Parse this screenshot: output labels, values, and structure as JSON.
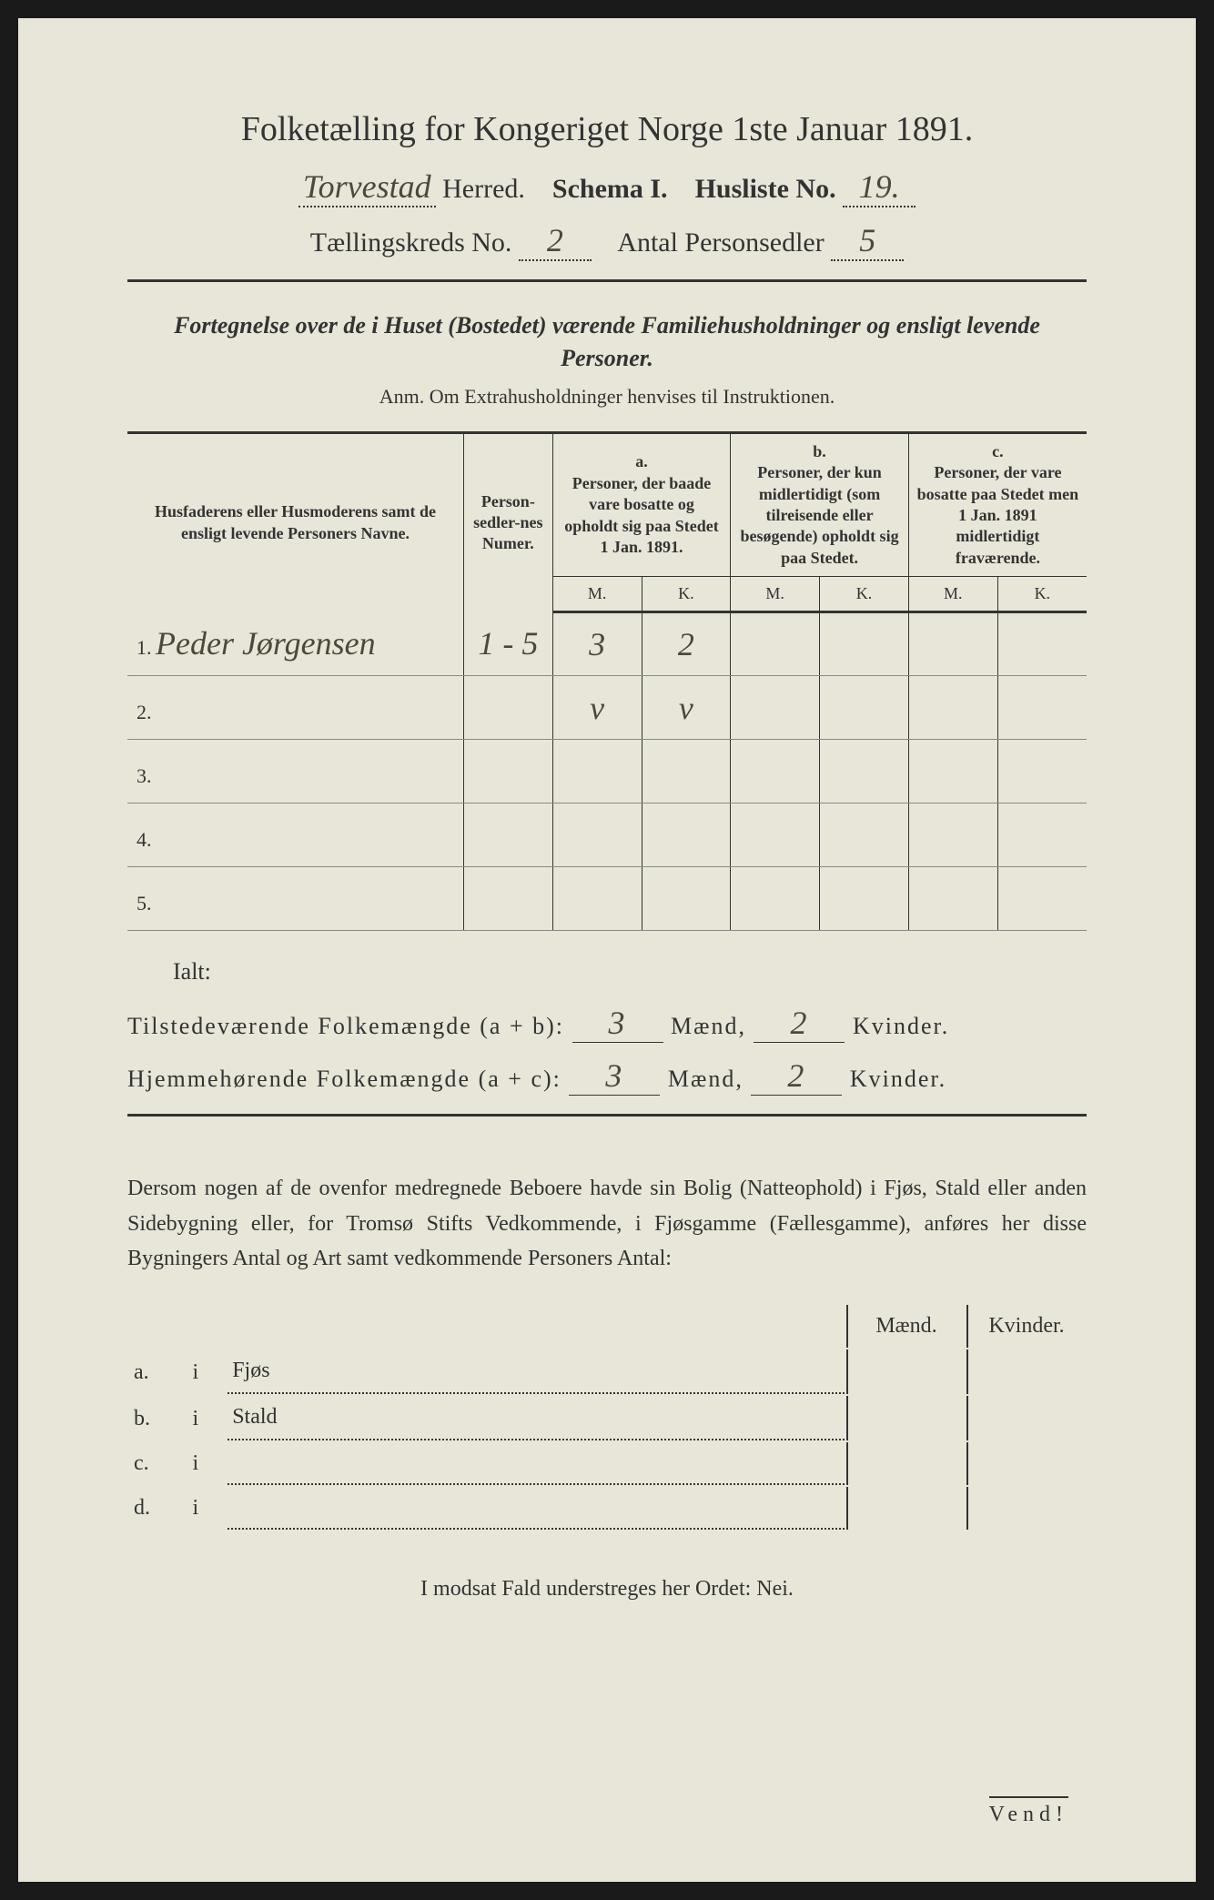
{
  "header": {
    "title": "Folketælling for Kongeriget Norge 1ste Januar 1891.",
    "herred_value": "Torvestad",
    "herred_label": "Herred.",
    "schema_label": "Schema I.",
    "husliste_label": "Husliste No.",
    "husliste_value": "19.",
    "taellingskreds_label": "Tællingskreds No.",
    "taellingskreds_value": "2",
    "antal_label": "Antal Personsedler",
    "antal_value": "5"
  },
  "section_heading": "Fortegnelse over de i Huset (Bostedet) værende Familiehusholdninger og ensligt levende Personer.",
  "anm": "Anm.  Om Extrahusholdninger henvises til Instruktionen.",
  "table": {
    "col1_header": "Husfaderens eller Husmoderens samt de ensligt levende Personers Navne.",
    "col2_header": "Person-sedler-nes Numer.",
    "col_a_label": "a.",
    "col_a_text": "Personer, der baade vare bosatte og opholdt sig paa Stedet 1 Jan. 1891.",
    "col_b_label": "b.",
    "col_b_text": "Personer, der kun midlertidigt (som tilreisende eller besøgende) opholdt sig paa Stedet.",
    "col_c_label": "c.",
    "col_c_text": "Personer, der vare bosatte paa Stedet men 1 Jan. 1891 midlertidigt fraværende.",
    "m_label": "M.",
    "k_label": "K.",
    "rows": [
      {
        "num": "1.",
        "name": "Peder Jørgensen",
        "sedler": "1 - 5",
        "am": "3",
        "ak": "2",
        "bm": "",
        "bk": "",
        "cm": "",
        "ck": ""
      },
      {
        "num": "2.",
        "name": "",
        "sedler": "",
        "am": "v",
        "ak": "v",
        "bm": "",
        "bk": "",
        "cm": "",
        "ck": ""
      },
      {
        "num": "3.",
        "name": "",
        "sedler": "",
        "am": "",
        "ak": "",
        "bm": "",
        "bk": "",
        "cm": "",
        "ck": ""
      },
      {
        "num": "4.",
        "name": "",
        "sedler": "",
        "am": "",
        "ak": "",
        "bm": "",
        "bk": "",
        "cm": "",
        "ck": ""
      },
      {
        "num": "5.",
        "name": "",
        "sedler": "",
        "am": "",
        "ak": "",
        "bm": "",
        "bk": "",
        "cm": "",
        "ck": ""
      }
    ]
  },
  "summary": {
    "ialt": "Ialt:",
    "line1_label": "Tilstedeværende Folkemængde (a + b):",
    "line1_m": "3",
    "line1_k": "2",
    "line2_label": "Hjemmehørende Folkemængde (a + c):",
    "line2_m": "3",
    "line2_k": "2",
    "maend_label": "Mænd,",
    "kvinder_label": "Kvinder."
  },
  "paragraph": "Dersom nogen af de ovenfor medregnede Beboere havde sin Bolig (Natteophold) i Fjøs, Stald eller anden Sidebygning eller, for Tromsø Stifts Vedkommende, i Fjøsgamme (Fællesgamme), anføres her disse Bygningers Antal og Art samt vedkommende Personers Antal:",
  "subtable": {
    "maend_header": "Mænd.",
    "kvinder_header": "Kvinder.",
    "rows": [
      {
        "letter": "a.",
        "i": "i",
        "label": "Fjøs"
      },
      {
        "letter": "b.",
        "i": "i",
        "label": "Stald"
      },
      {
        "letter": "c.",
        "i": "i",
        "label": ""
      },
      {
        "letter": "d.",
        "i": "i",
        "label": ""
      }
    ]
  },
  "bottom": "I modsat Fald understreges her Ordet: Nei.",
  "vend": "Vend!"
}
